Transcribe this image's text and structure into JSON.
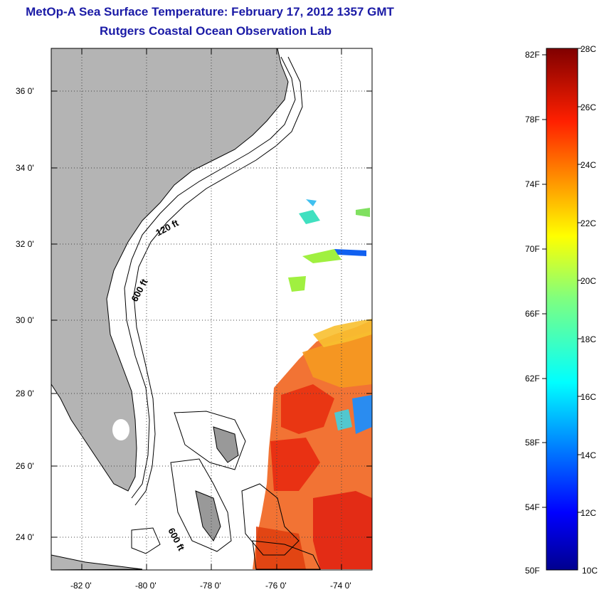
{
  "title": "MetOp-A Sea Surface Temperature:  February 17, 2012 1357 GMT",
  "subtitle": "Rutgers Coastal Ocean Observation Lab",
  "map": {
    "lat_labels": [
      "36 0'",
      "34 0'",
      "32 0'",
      "30 0'",
      "28 0'",
      "26 0'",
      "24 0'"
    ],
    "lon_labels": [
      "-82 0'",
      "-80 0'",
      "-78 0'",
      "-76 0'",
      "-74 0'"
    ],
    "contour_labels": [
      "120 ft",
      "600 ft",
      "600 ft"
    ],
    "land_color": "#b4b4b4",
    "grid": "dotted"
  },
  "colorbar": {
    "fahrenheit_labels": [
      "82F",
      "78F",
      "74F",
      "70F",
      "66F",
      "62F",
      "58F",
      "54F",
      "50F"
    ],
    "celsius_labels": [
      "28C",
      "26C",
      "24C",
      "22C",
      "20C",
      "18C",
      "16C",
      "14C",
      "12C",
      "10C"
    ],
    "colormap": "jet"
  }
}
